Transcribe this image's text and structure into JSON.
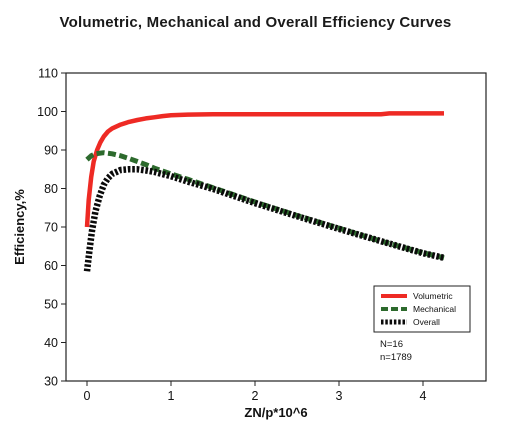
{
  "chart_data": {
    "type": "line",
    "title": "Volumetric, Mechanical and Overall Efficiency Curves",
    "xlabel": "ZN/p*10^6",
    "ylabel": "Efficiency,%",
    "xlim": [
      -0.25,
      4.75
    ],
    "ylim": [
      30,
      110
    ],
    "xticks": [
      0,
      1,
      2,
      3,
      4
    ],
    "yticks": [
      30,
      40,
      50,
      60,
      70,
      80,
      90,
      100,
      110
    ],
    "grid": false,
    "legend_position": "bottom-right",
    "series": [
      {
        "name": "Volumetric",
        "color": "#ee2a24",
        "style": "solid",
        "x": [
          0.0,
          0.02,
          0.05,
          0.08,
          0.12,
          0.16,
          0.2,
          0.25,
          0.3,
          0.4,
          0.5,
          0.6,
          0.7,
          0.8,
          0.9,
          1.0,
          1.2,
          1.5,
          2.0,
          2.5,
          3.0,
          3.5,
          3.6,
          4.0,
          4.25
        ],
        "y": [
          70,
          77,
          83,
          87,
          90,
          92,
          93.5,
          94.8,
          95.6,
          96.6,
          97.3,
          97.8,
          98.2,
          98.5,
          98.8,
          99.0,
          99.2,
          99.3,
          99.3,
          99.3,
          99.3,
          99.3,
          99.5,
          99.5,
          99.5
        ]
      },
      {
        "name": "Mechanical",
        "color": "#2d6a2d",
        "style": "dashed",
        "x": [
          0.0,
          0.05,
          0.1,
          0.2,
          0.3,
          0.4,
          0.5,
          0.6,
          0.7,
          0.8,
          1.0,
          1.2,
          1.5,
          2.0,
          2.5,
          3.0,
          3.5,
          4.0,
          4.25
        ],
        "y": [
          87.5,
          88.5,
          89.0,
          89.3,
          89.0,
          88.5,
          87.8,
          87.0,
          86.2,
          85.3,
          83.8,
          82.4,
          80.2,
          76.5,
          73.0,
          69.7,
          66.3,
          63.3,
          62.0
        ]
      },
      {
        "name": "Overall",
        "color": "#0a0a0a",
        "style": "dotted",
        "x": [
          0.0,
          0.03,
          0.06,
          0.1,
          0.15,
          0.2,
          0.25,
          0.3,
          0.4,
          0.5,
          0.6,
          0.7,
          0.8,
          1.0,
          1.2,
          1.5,
          2.0,
          2.5,
          3.0,
          3.5,
          4.0,
          4.25
        ],
        "y": [
          58.5,
          64,
          69,
          74,
          78,
          81,
          82.7,
          83.8,
          84.8,
          85.0,
          85.0,
          84.7,
          84.3,
          83.2,
          81.8,
          79.9,
          76.2,
          72.8,
          69.5,
          66.3,
          63.2,
          62.0
        ]
      }
    ],
    "annotations": [
      "N=16",
      "n=1789"
    ]
  }
}
